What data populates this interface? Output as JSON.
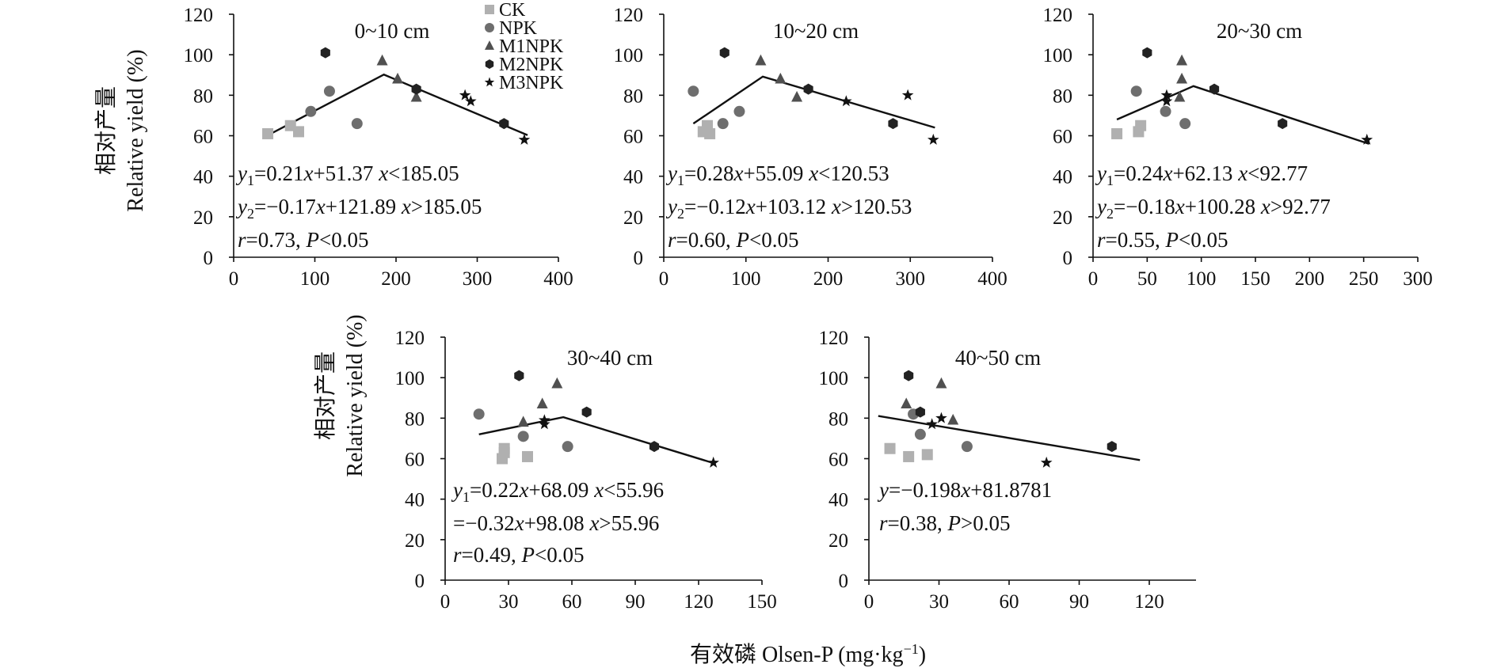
{
  "figure": {
    "ylabel_cn": "相对产量",
    "ylabel_en": "Relative yield (%)",
    "xlabel": "有效磷 Olsen-P (mg·kg",
    "xlabel_sup": "−1",
    "xlabel_close": ")"
  },
  "legend": [
    {
      "name": "CK",
      "marker": "square",
      "color": "#b0b0b0"
    },
    {
      "name": "NPK",
      "marker": "circle",
      "color": "#6e6e6e"
    },
    {
      "name": "M1NPK",
      "marker": "triangle",
      "color": "#505050"
    },
    {
      "name": "M2NPK",
      "marker": "hexagon",
      "color": "#222222"
    },
    {
      "name": "M3NPK",
      "marker": "star",
      "color": "#111111"
    }
  ],
  "chart_data": [
    {
      "type": "scatter",
      "title": "0~10 cm",
      "xlim": [
        0,
        400
      ],
      "xticks": [
        0,
        100,
        200,
        300,
        400
      ],
      "ylim": [
        0,
        120
      ],
      "yticks": [
        0,
        20,
        40,
        60,
        80,
        100,
        120
      ],
      "fit": [
        [
          42,
          60.2
        ],
        [
          185.05,
          90.2
        ],
        [
          362,
          60.3
        ]
      ],
      "points": [
        {
          "series": "CK",
          "x": 42,
          "y": 61
        },
        {
          "series": "CK",
          "x": 70,
          "y": 65
        },
        {
          "series": "CK",
          "x": 80,
          "y": 62
        },
        {
          "series": "NPK",
          "x": 95,
          "y": 72
        },
        {
          "series": "NPK",
          "x": 118,
          "y": 82
        },
        {
          "series": "NPK",
          "x": 152,
          "y": 66
        },
        {
          "series": "M1NPK",
          "x": 183,
          "y": 97
        },
        {
          "series": "M1NPK",
          "x": 202,
          "y": 88
        },
        {
          "series": "M1NPK",
          "x": 225,
          "y": 79
        },
        {
          "series": "M2NPK",
          "x": 113,
          "y": 101
        },
        {
          "series": "M2NPK",
          "x": 225,
          "y": 83
        },
        {
          "series": "M2NPK",
          "x": 333,
          "y": 66
        },
        {
          "series": "M3NPK",
          "x": 285,
          "y": 80
        },
        {
          "series": "M3NPK",
          "x": 292,
          "y": 77
        },
        {
          "series": "M3NPK",
          "x": 358,
          "y": 58
        }
      ],
      "equations": [
        {
          "parts": [
            {
              "t": "y",
              "i": true
            },
            {
              "t": "1",
              "sub": true
            },
            {
              "t": "=0.21"
            },
            {
              "t": "x",
              "i": true
            },
            {
              "t": "+51.37  "
            },
            {
              "t": "x",
              "i": true
            },
            {
              "t": "<185.05"
            }
          ]
        },
        {
          "parts": [
            {
              "t": "y",
              "i": true
            },
            {
              "t": "2",
              "sub": true
            },
            {
              "t": "=−0.17"
            },
            {
              "t": "x",
              "i": true
            },
            {
              "t": "+121.89  "
            },
            {
              "t": "x",
              "i": true
            },
            {
              "t": ">185.05"
            }
          ]
        },
        {
          "parts": [
            {
              "t": "r",
              "i": true
            },
            {
              "t": "=0.73, "
            },
            {
              "t": "P",
              "i": true
            },
            {
              "t": "<0.05"
            }
          ]
        }
      ]
    },
    {
      "type": "scatter",
      "title": "10~20 cm",
      "xlim": [
        0,
        400
      ],
      "xticks": [
        0,
        100,
        200,
        300,
        400
      ],
      "ylim": [
        0,
        120
      ],
      "yticks": [
        0,
        20,
        40,
        60,
        80,
        100,
        120
      ],
      "fit": [
        [
          36,
          66
        ],
        [
          120.53,
          89.2
        ],
        [
          330,
          64
        ]
      ],
      "points": [
        {
          "series": "CK",
          "x": 48,
          "y": 62
        },
        {
          "series": "CK",
          "x": 53,
          "y": 65
        },
        {
          "series": "CK",
          "x": 56,
          "y": 61
        },
        {
          "series": "NPK",
          "x": 36,
          "y": 82
        },
        {
          "series": "NPK",
          "x": 72,
          "y": 66
        },
        {
          "series": "NPK",
          "x": 92,
          "y": 72
        },
        {
          "series": "M1NPK",
          "x": 118,
          "y": 97
        },
        {
          "series": "M1NPK",
          "x": 142,
          "y": 88
        },
        {
          "series": "M1NPK",
          "x": 162,
          "y": 79
        },
        {
          "series": "M2NPK",
          "x": 74,
          "y": 101
        },
        {
          "series": "M2NPK",
          "x": 176,
          "y": 83
        },
        {
          "series": "M2NPK",
          "x": 279,
          "y": 66
        },
        {
          "series": "M3NPK",
          "x": 222,
          "y": 77
        },
        {
          "series": "M3NPK",
          "x": 297,
          "y": 80
        },
        {
          "series": "M3NPK",
          "x": 328,
          "y": 58
        }
      ],
      "equations": [
        {
          "parts": [
            {
              "t": "y",
              "i": true
            },
            {
              "t": "1",
              "sub": true
            },
            {
              "t": "=0.28"
            },
            {
              "t": "x",
              "i": true
            },
            {
              "t": "+55.09  "
            },
            {
              "t": "x",
              "i": true
            },
            {
              "t": "<120.53"
            }
          ]
        },
        {
          "parts": [
            {
              "t": "y",
              "i": true
            },
            {
              "t": "2",
              "sub": true
            },
            {
              "t": "=−0.12"
            },
            {
              "t": "x",
              "i": true
            },
            {
              "t": "+103.12  "
            },
            {
              "t": "x",
              "i": true
            },
            {
              "t": ">120.53"
            }
          ]
        },
        {
          "parts": [
            {
              "t": "r",
              "i": true
            },
            {
              "t": "=0.60, "
            },
            {
              "t": "P",
              "i": true
            },
            {
              "t": "<0.05"
            }
          ]
        }
      ]
    },
    {
      "type": "scatter",
      "title": "20~30 cm",
      "xlim": [
        0,
        300
      ],
      "xticks": [
        0,
        50,
        100,
        150,
        200,
        250,
        300
      ],
      "ylim": [
        0,
        120
      ],
      "yticks": [
        0,
        20,
        40,
        60,
        80,
        100,
        120
      ],
      "fit": [
        [
          22,
          68
        ],
        [
          92.77,
          84.5
        ],
        [
          255,
          56
        ]
      ],
      "points": [
        {
          "series": "CK",
          "x": 22,
          "y": 61
        },
        {
          "series": "CK",
          "x": 42,
          "y": 62
        },
        {
          "series": "CK",
          "x": 44,
          "y": 65
        },
        {
          "series": "NPK",
          "x": 40,
          "y": 82
        },
        {
          "series": "NPK",
          "x": 67,
          "y": 72
        },
        {
          "series": "NPK",
          "x": 85,
          "y": 66
        },
        {
          "series": "M1NPK",
          "x": 82,
          "y": 97
        },
        {
          "series": "M1NPK",
          "x": 82,
          "y": 88
        },
        {
          "series": "M1NPK",
          "x": 80,
          "y": 79
        },
        {
          "series": "M2NPK",
          "x": 50,
          "y": 101
        },
        {
          "series": "M2NPK",
          "x": 112,
          "y": 83
        },
        {
          "series": "M2NPK",
          "x": 175,
          "y": 66
        },
        {
          "series": "M3NPK",
          "x": 68,
          "y": 80
        },
        {
          "series": "M3NPK",
          "x": 68,
          "y": 77
        },
        {
          "series": "M3NPK",
          "x": 253,
          "y": 58
        }
      ],
      "equations": [
        {
          "parts": [
            {
              "t": "y",
              "i": true
            },
            {
              "t": "1",
              "sub": true
            },
            {
              "t": "=0.24"
            },
            {
              "t": "x",
              "i": true
            },
            {
              "t": "+62.13  "
            },
            {
              "t": "x",
              "i": true
            },
            {
              "t": "<92.77"
            }
          ]
        },
        {
          "parts": [
            {
              "t": "y",
              "i": true
            },
            {
              "t": "2",
              "sub": true
            },
            {
              "t": "=−0.18"
            },
            {
              "t": "x",
              "i": true
            },
            {
              "t": "+100.28  "
            },
            {
              "t": "x",
              "i": true
            },
            {
              "t": ">92.77"
            }
          ]
        },
        {
          "parts": [
            {
              "t": "r",
              "i": true
            },
            {
              "t": "=0.55, "
            },
            {
              "t": "P",
              "i": true
            },
            {
              "t": "<0.05"
            }
          ]
        }
      ]
    },
    {
      "type": "scatter",
      "title": "30~40 cm",
      "xlim": [
        0,
        150
      ],
      "xticks": [
        0,
        30,
        60,
        90,
        120,
        150
      ],
      "ylim": [
        0,
        120
      ],
      "yticks": [
        0,
        20,
        40,
        60,
        80,
        100,
        120
      ],
      "fit": [
        [
          16,
          72
        ],
        [
          55.96,
          80.5
        ],
        [
          128,
          57.5
        ]
      ],
      "points": [
        {
          "series": "CK",
          "x": 27,
          "y": 60
        },
        {
          "series": "CK",
          "x": 28,
          "y": 63
        },
        {
          "series": "CK",
          "x": 28,
          "y": 65
        },
        {
          "series": "CK",
          "x": 39,
          "y": 61
        },
        {
          "series": "NPK",
          "x": 16,
          "y": 82
        },
        {
          "series": "NPK",
          "x": 37,
          "y": 71
        },
        {
          "series": "NPK",
          "x": 58,
          "y": 66
        },
        {
          "series": "M1NPK",
          "x": 37,
          "y": 78
        },
        {
          "series": "M1NPK",
          "x": 46,
          "y": 87
        },
        {
          "series": "M1NPK",
          "x": 53,
          "y": 97
        },
        {
          "series": "M2NPK",
          "x": 35,
          "y": 101
        },
        {
          "series": "M2NPK",
          "x": 67,
          "y": 83
        },
        {
          "series": "M2NPK",
          "x": 99,
          "y": 66
        },
        {
          "series": "M3NPK",
          "x": 47,
          "y": 79
        },
        {
          "series": "M3NPK",
          "x": 47,
          "y": 77
        },
        {
          "series": "M3NPK",
          "x": 127,
          "y": 58
        }
      ],
      "equations": [
        {
          "parts": [
            {
              "t": "y",
              "i": true
            },
            {
              "t": "1",
              "sub": true
            },
            {
              "t": "=0.22"
            },
            {
              "t": "x",
              "i": true
            },
            {
              "t": "+68.09  "
            },
            {
              "t": "x",
              "i": true
            },
            {
              "t": "<55.96"
            }
          ]
        },
        {
          "parts": [
            {
              "t": "   =−0.32"
            },
            {
              "t": "x",
              "i": true
            },
            {
              "t": "+98.08 "
            },
            {
              "t": "x",
              "i": true
            },
            {
              "t": ">55.96"
            }
          ]
        },
        {
          "parts": [
            {
              "t": "r",
              "i": true
            },
            {
              "t": "=0.49, "
            },
            {
              "t": "P",
              "i": true
            },
            {
              "t": "<0.05"
            }
          ]
        }
      ]
    },
    {
      "type": "scatter",
      "title": "40~50 cm",
      "xlim": [
        0,
        140
      ],
      "xticks": [
        0,
        30,
        60,
        90,
        120
      ],
      "ylim": [
        0,
        120
      ],
      "yticks": [
        0,
        20,
        40,
        60,
        80,
        100,
        120
      ],
      "fit": [
        [
          4,
          81.1
        ],
        [
          116,
          59.3
        ]
      ],
      "points": [
        {
          "series": "CK",
          "x": 9,
          "y": 65
        },
        {
          "series": "CK",
          "x": 17,
          "y": 61
        },
        {
          "series": "CK",
          "x": 25,
          "y": 62
        },
        {
          "series": "NPK",
          "x": 19,
          "y": 82
        },
        {
          "series": "NPK",
          "x": 22,
          "y": 72
        },
        {
          "series": "NPK",
          "x": 42,
          "y": 66
        },
        {
          "series": "M1NPK",
          "x": 16,
          "y": 87
        },
        {
          "series": "M1NPK",
          "x": 31,
          "y": 97
        },
        {
          "series": "M1NPK",
          "x": 36,
          "y": 79
        },
        {
          "series": "M2NPK",
          "x": 17,
          "y": 101
        },
        {
          "series": "M2NPK",
          "x": 22,
          "y": 83
        },
        {
          "series": "M2NPK",
          "x": 104,
          "y": 66
        },
        {
          "series": "M3NPK",
          "x": 27,
          "y": 77
        },
        {
          "series": "M3NPK",
          "x": 31,
          "y": 80
        },
        {
          "series": "M3NPK",
          "x": 76,
          "y": 58
        }
      ],
      "equations": [
        {
          "parts": [
            {
              "t": "y",
              "i": true
            },
            {
              "t": "=−0.198"
            },
            {
              "t": "x",
              "i": true
            },
            {
              "t": "+81.8781"
            }
          ]
        },
        {
          "parts": [
            {
              "t": "r",
              "i": true
            },
            {
              "t": "=0.38, "
            },
            {
              "t": "P",
              "i": true
            },
            {
              "t": ">0.05"
            }
          ]
        }
      ]
    }
  ]
}
